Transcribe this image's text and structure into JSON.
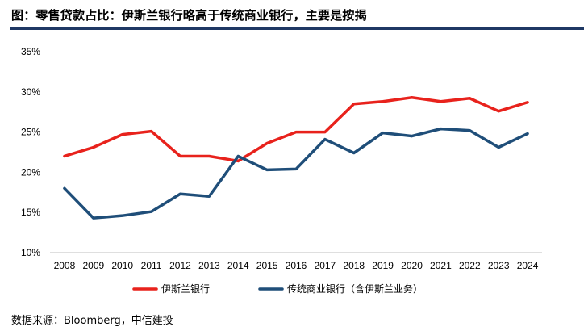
{
  "title": "图：零售贷款占比：伊斯兰银行略高于传统商业银行，主要是按揭",
  "source": "数据来源：Bloomberg，中信建投",
  "colors": {
    "title_rule": "#1f3864"
  },
  "chart_data": {
    "type": "line",
    "title": "",
    "xlabel": "",
    "ylabel": "",
    "x": [
      "2008",
      "2009",
      "2010",
      "2011",
      "2012",
      "2013",
      "2014",
      "2015",
      "2016",
      "2017",
      "2018",
      "2019",
      "2020",
      "2021",
      "2022",
      "2023",
      "2024"
    ],
    "ylim": [
      10,
      35
    ],
    "yticks": [
      "35%",
      "30%",
      "25%",
      "20%",
      "15%",
      "10%"
    ],
    "ytick_values": [
      35,
      30,
      25,
      20,
      15,
      10
    ],
    "grid": false,
    "legend_position": "bottom",
    "series": [
      {
        "name": "伊斯兰银行",
        "color": "#e8221c",
        "values": [
          22.0,
          23.1,
          24.7,
          25.1,
          22.0,
          22.0,
          21.4,
          23.6,
          25.0,
          25.0,
          28.5,
          28.8,
          29.3,
          28.8,
          29.2,
          27.6,
          28.7
        ]
      },
      {
        "name": "传统商业银行（含伊斯兰业务）",
        "color": "#1f4e79",
        "values": [
          18.0,
          14.3,
          14.6,
          15.1,
          17.3,
          17.0,
          22.0,
          20.3,
          20.4,
          24.1,
          22.4,
          24.9,
          24.5,
          25.4,
          25.2,
          23.1,
          24.8
        ]
      }
    ]
  }
}
